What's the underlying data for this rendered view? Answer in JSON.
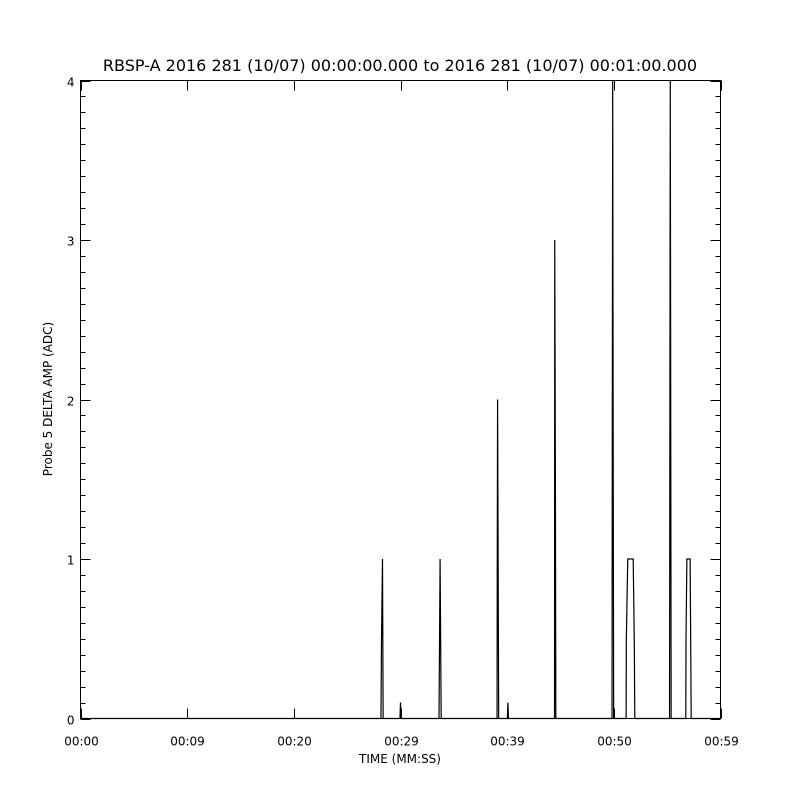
{
  "chart_data": {
    "type": "line",
    "title": "RBSP-A 2016 281 (10/07) 00:00:00.000 to 2016 281 (10/07) 00:01:00.000",
    "xlabel": "TIME (MM:SS)",
    "ylabel": "Probe 5 DELTA AMP (ADC)",
    "xlim": [
      0,
      59
    ],
    "ylim": [
      0,
      4
    ],
    "grid": false,
    "x_ticks": [
      0,
      9.833,
      19.667,
      29.5,
      39.333,
      49.167,
      59
    ],
    "x_tick_labels": [
      "00:00",
      "00:09",
      "00:20",
      "00:29",
      "00:39",
      "00:50",
      "00:59"
    ],
    "y_ticks": [
      0,
      1,
      2,
      3,
      4
    ],
    "y_tick_labels": [
      "0",
      "1",
      "2",
      "3",
      "4"
    ],
    "line_color": "#000000",
    "series": [
      {
        "x": [
          0,
          27.7,
          27.75,
          27.84,
          27.9,
          29.45,
          29.5,
          29.55,
          33.05,
          33.1,
          33.15,
          33.2,
          33.25,
          38.4,
          38.42,
          38.45,
          38.5,
          38.55,
          39.35,
          39.4,
          39.45,
          43.7,
          43.72,
          43.78,
          43.82,
          49.0,
          49.02,
          49.06,
          49.1,
          49.15,
          50.3,
          50.32,
          50.45,
          50.95,
          51.05,
          51.1,
          54.3,
          54.32,
          54.37,
          54.45,
          55.8,
          55.82,
          55.9,
          56.2,
          56.25,
          56.3,
          59
        ],
        "y": [
          0,
          0,
          0.5,
          1,
          0,
          0,
          0.1,
          0,
          0,
          0.5,
          1,
          0.5,
          0,
          0,
          1,
          2,
          1,
          0,
          0,
          0.1,
          0,
          0,
          3,
          1.5,
          0,
          0,
          1.5,
          4,
          2,
          0,
          0,
          0.5,
          1,
          1,
          0.5,
          0,
          0,
          1,
          4,
          0,
          0,
          0.5,
          1,
          1,
          0.5,
          0,
          0
        ]
      }
    ]
  }
}
